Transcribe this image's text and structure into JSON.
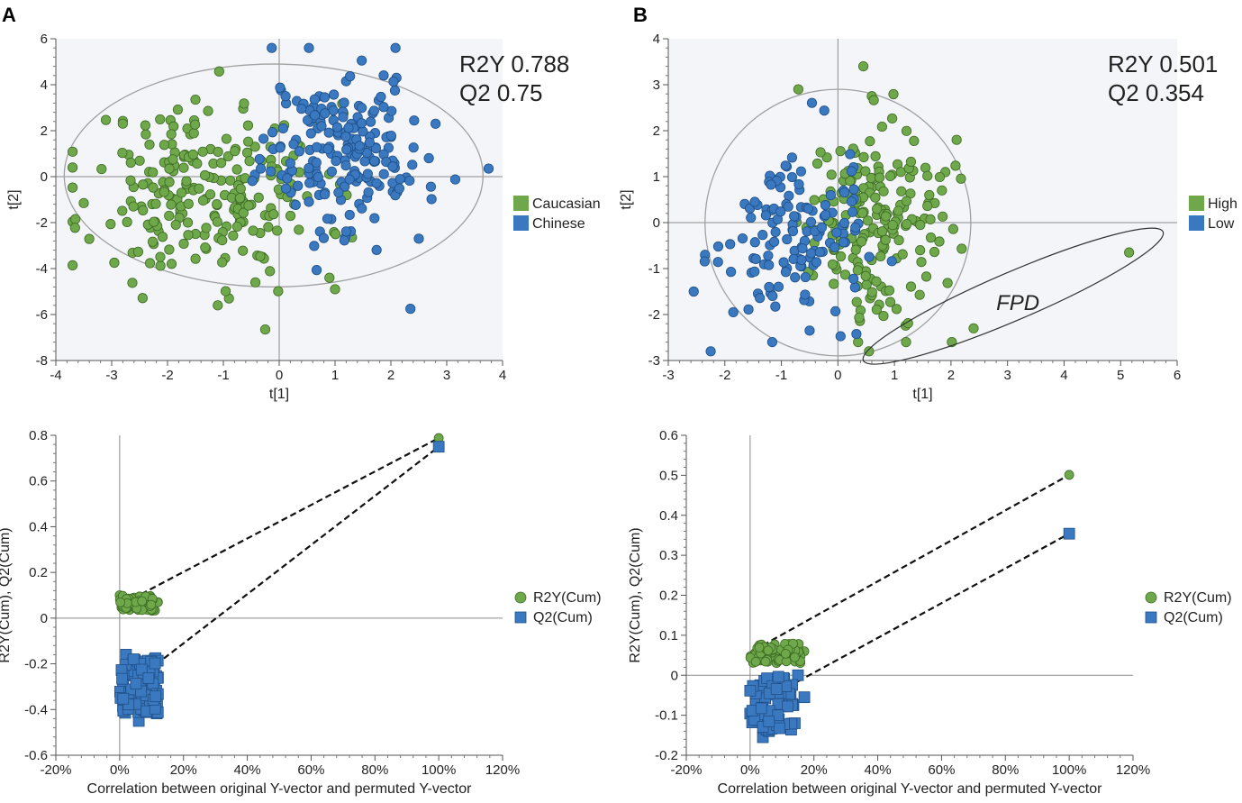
{
  "colors": {
    "green": "#6fa84a",
    "green_stroke": "#3d6b25",
    "blue": "#3a78bf",
    "blue_stroke": "#1f4f88",
    "plot_bg": "#f3f5f8",
    "axis": "#8c8c8c",
    "ellipse": "#a0a0a0"
  },
  "panels": {
    "A": {
      "label": "A"
    },
    "B": {
      "label": "B"
    }
  },
  "chart_data": [
    {
      "id": "A-scores",
      "type": "scatter",
      "title": "",
      "xlabel": "t[1]",
      "ylabel": "t[2]",
      "xlim": [
        -4,
        4
      ],
      "ylim": [
        -8,
        6
      ],
      "xticks": [
        "-4",
        "-3",
        "-2",
        "-1",
        "0",
        "1",
        "2",
        "3",
        "4"
      ],
      "yticks": [
        "-8",
        "-6",
        "-4",
        "-2",
        "0",
        "2",
        "4",
        "6"
      ],
      "annotation": [
        "R2Y 0.788",
        "Q2 0.75"
      ],
      "legend": [
        {
          "name": "Caucasian",
          "color": "green"
        },
        {
          "name": "Chinese",
          "color": "blue"
        }
      ],
      "ellipse": {
        "cx": -0.1,
        "cy": 0.05,
        "rx": 3.75,
        "ry": 4.85
      },
      "seed": 11,
      "series": [
        {
          "name": "Caucasian",
          "color": "green",
          "n": 230,
          "cx": -1.3,
          "cy": -0.6,
          "sx": 1.05,
          "sy": 1.9,
          "fixed": [
            [
              -0.25,
              -6.65
            ],
            [
              -1.1,
              -5.6
            ],
            [
              -1.5,
              3.35
            ],
            [
              -3.5,
              -1.15
            ],
            [
              1.0,
              -4.9
            ],
            [
              -0.3,
              -3.5
            ],
            [
              0.6,
              2.5
            ],
            [
              0.9,
              -4.4
            ],
            [
              -0.9,
              -5.3
            ]
          ]
        },
        {
          "name": "Chinese",
          "color": "blue",
          "n": 200,
          "cx": 1.15,
          "cy": 1.2,
          "sx": 0.72,
          "sy": 1.75,
          "fixed": [
            [
              3.75,
              0.35
            ],
            [
              2.1,
              4.3
            ],
            [
              2.35,
              -5.75
            ],
            [
              2.8,
              2.3
            ],
            [
              2.5,
              -2.7
            ],
            [
              0.3,
              1.6
            ]
          ]
        }
      ]
    },
    {
      "id": "B-scores",
      "type": "scatter",
      "title": "",
      "xlabel": "t[1]",
      "ylabel": "t[2]",
      "xlim": [
        -3,
        6
      ],
      "ylim": [
        -3,
        4
      ],
      "xticks": [
        "-3",
        "-2",
        "-1",
        "0",
        "1",
        "2",
        "3",
        "4",
        "5",
        "6"
      ],
      "yticks": [
        "-3",
        "-2",
        "-1",
        "0",
        "1",
        "2",
        "3",
        "4"
      ],
      "annotation": [
        "R2Y 0.501",
        "Q2 0.354"
      ],
      "legend": [
        {
          "name": "High",
          "color": "green"
        },
        {
          "name": "Low",
          "color": "blue"
        }
      ],
      "ellipse": {
        "cx": 0.0,
        "cy": 0.0,
        "rx": 2.35,
        "ry": 2.9
      },
      "outlier_ellipse": {
        "label": "FPD",
        "p1": [
          0.45,
          -3.0
        ],
        "p2": [
          5.75,
          -0.2
        ],
        "ry": 0.52
      },
      "seed": 29,
      "series": [
        {
          "name": "High",
          "color": "green",
          "n": 190,
          "cx": 0.55,
          "cy": 0.05,
          "sx": 0.62,
          "sy": 1.05,
          "fixed": [
            [
              5.15,
              -0.65
            ],
            [
              2.4,
              -2.3
            ],
            [
              0.55,
              -2.8
            ],
            [
              0.45,
              3.4
            ],
            [
              2.1,
              1.8
            ],
            [
              -0.7,
              2.9
            ],
            [
              1.9,
              1.1
            ],
            [
              0.6,
              2.75
            ]
          ]
        },
        {
          "name": "Low",
          "color": "blue",
          "n": 130,
          "cx": -0.75,
          "cy": -0.3,
          "sx": 0.6,
          "sy": 0.85,
          "fixed": [
            [
              -2.25,
              -2.8
            ],
            [
              -2.55,
              -1.5
            ],
            [
              -1.85,
              -1.95
            ],
            [
              -2.35,
              -0.7
            ],
            [
              -0.5,
              -2.35
            ]
          ]
        }
      ]
    },
    {
      "id": "A-permutation",
      "type": "scatter",
      "title": "",
      "xlabel": "Correlation between original Y-vector and permuted Y-vector",
      "ylabel": "R2Y(Cum), Q2(Cum)",
      "xlim": [
        -0.2,
        1.2
      ],
      "ylim": [
        -0.6,
        0.8
      ],
      "xticks": [
        "-20%",
        "0%",
        "20%",
        "40%",
        "60%",
        "80%",
        "100%",
        "120%"
      ],
      "yticks": [
        "-0.6",
        "-0.4",
        "-0.2",
        "0",
        "0.2",
        "0.4",
        "0.6",
        "0.8"
      ],
      "legend": [
        {
          "name": "R2Y(Cum)",
          "color": "green",
          "shape": "circle"
        },
        {
          "name": "Q2(Cum)",
          "color": "blue",
          "shape": "square"
        }
      ],
      "original": {
        "x": 1.0,
        "r2y": 0.788,
        "q2": 0.75
      },
      "seed": 53,
      "series": [
        {
          "name": "R2Y(Cum)",
          "shape": "circle",
          "color": "green",
          "n": 70,
          "xmin": 0.0,
          "xmax": 0.12,
          "ymin": 0.03,
          "ymax": 0.1,
          "fixed": [
            [
              0.0,
              0.1
            ],
            [
              0.12,
              0.07
            ]
          ]
        },
        {
          "name": "Q2(Cum)",
          "shape": "square",
          "color": "blue",
          "n": 80,
          "xmin": 0.0,
          "xmax": 0.12,
          "ymin": -0.42,
          "ymax": -0.17,
          "fixed": [
            [
              0.06,
              -0.45
            ],
            [
              0.11,
              -0.18
            ],
            [
              0.02,
              -0.16
            ],
            [
              0.12,
              -0.26
            ]
          ]
        }
      ]
    },
    {
      "id": "B-permutation",
      "type": "scatter",
      "title": "",
      "xlabel": "Correlation between original Y-vector and permuted Y-vector",
      "ylabel": "R2Y(Cum), Q2(Cum)",
      "xlim": [
        -0.2,
        1.2
      ],
      "ylim": [
        -0.2,
        0.6
      ],
      "xticks": [
        "-20%",
        "0%",
        "20%",
        "40%",
        "60%",
        "80%",
        "100%",
        "120%"
      ],
      "yticks": [
        "-0.2",
        "-0.1",
        "0",
        "0.1",
        "0.2",
        "0.3",
        "0.4",
        "0.5",
        "0.6"
      ],
      "legend": [
        {
          "name": "R2Y(Cum)",
          "color": "green",
          "shape": "circle"
        },
        {
          "name": "Q2(Cum)",
          "color": "blue",
          "shape": "square"
        }
      ],
      "original": {
        "x": 1.0,
        "r2y": 0.501,
        "q2": 0.354
      },
      "seed": 71,
      "series": [
        {
          "name": "R2Y(Cum)",
          "shape": "circle",
          "color": "green",
          "n": 75,
          "xmin": 0.0,
          "xmax": 0.16,
          "ymin": 0.03,
          "ymax": 0.08,
          "fixed": [
            [
              0.17,
              0.06
            ],
            [
              0.15,
              0.075
            ]
          ]
        },
        {
          "name": "Q2(Cum)",
          "shape": "square",
          "color": "blue",
          "n": 75,
          "xmin": 0.0,
          "xmax": 0.14,
          "ymin": -0.14,
          "ymax": 0.0,
          "fixed": [
            [
              0.17,
              -0.055
            ],
            [
              0.15,
              0.0
            ],
            [
              0.04,
              -0.155
            ],
            [
              0.14,
              -0.12
            ]
          ]
        }
      ]
    }
  ]
}
